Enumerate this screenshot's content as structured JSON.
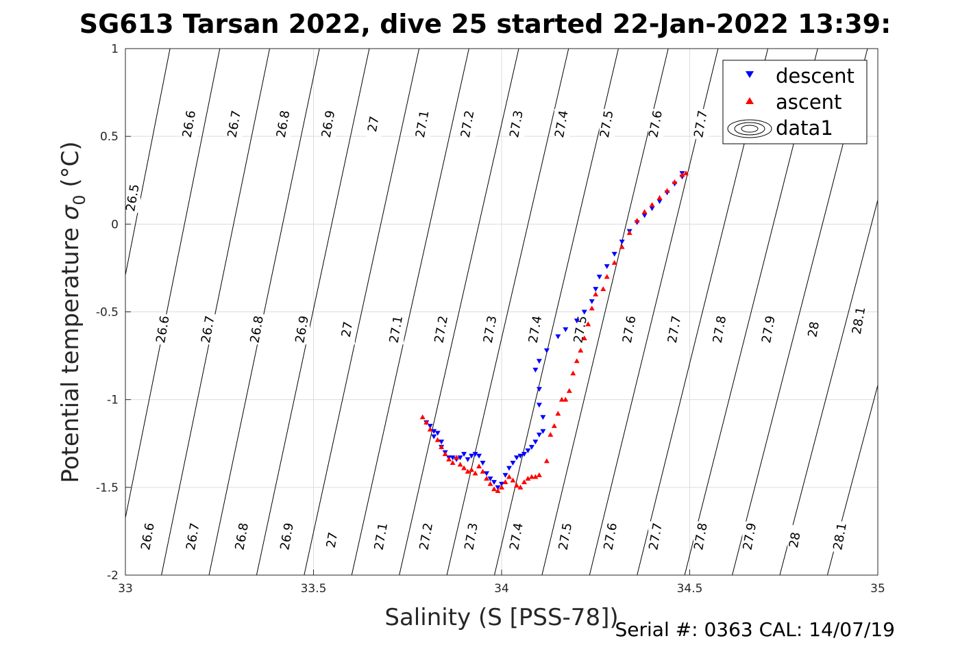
{
  "chart_data": {
    "type": "scatter",
    "title": "SG613 Tarsan 2022, dive 25 started 22-Jan-2022 13:39:",
    "xlabel": "Salinity (S [PSS-78])",
    "ylabel": "Potential temperature σ₀ (°C)",
    "ylabel_main": "Potential temperature ",
    "ylabel_sigma": "σ",
    "ylabel_sub": "0",
    "ylabel_unit": " (°C)",
    "xlim": [
      33,
      35
    ],
    "ylim": [
      -2,
      1
    ],
    "xticks": [
      33,
      33.5,
      34,
      34.5,
      35
    ],
    "xtick_labels": [
      "33",
      "33.5",
      "34",
      "34.5",
      "35"
    ],
    "yticks": [
      1,
      0.5,
      0,
      -0.5,
      -1,
      -1.5,
      -2
    ],
    "ytick_labels": [
      "1",
      "0.5",
      "0",
      "-0.5",
      "-1",
      "-1.5",
      "-2"
    ],
    "grid": true,
    "legend_position": "top-right",
    "legend": [
      "descent",
      "ascent",
      "data1"
    ],
    "colors": {
      "descent": "#0000ff",
      "ascent": "#ff0000",
      "contour": "#000000",
      "grid": "#dcdcdc"
    },
    "contours": {
      "levels": [
        26.5,
        26.6,
        26.7,
        26.8,
        26.9,
        27.0,
        27.1,
        27.2,
        27.3,
        27.4,
        27.5,
        27.6,
        27.7,
        27.8,
        27.9,
        28.0,
        28.1
      ],
      "labels": [
        {
          "text": "26.5",
          "s": 33.02,
          "t": 0.15
        },
        {
          "text": "26.6",
          "s": 33.17,
          "t": 0.57
        },
        {
          "text": "26.7",
          "s": 33.29,
          "t": 0.57
        },
        {
          "text": "26.8",
          "s": 33.42,
          "t": 0.57
        },
        {
          "text": "26.9",
          "s": 33.54,
          "t": 0.57
        },
        {
          "text": "27",
          "s": 33.66,
          "t": 0.57
        },
        {
          "text": "27.1",
          "s": 33.79,
          "t": 0.57
        },
        {
          "text": "27.2",
          "s": 33.91,
          "t": 0.57
        },
        {
          "text": "27.3",
          "s": 34.04,
          "t": 0.57
        },
        {
          "text": "27.4",
          "s": 34.16,
          "t": 0.57
        },
        {
          "text": "27.5",
          "s": 34.28,
          "t": 0.57
        },
        {
          "text": "27.6",
          "s": 34.41,
          "t": 0.57
        },
        {
          "text": "27.7",
          "s": 34.53,
          "t": 0.57
        },
        {
          "text": "26.6",
          "s": 33.1,
          "t": -0.6
        },
        {
          "text": "26.7",
          "s": 33.22,
          "t": -0.6
        },
        {
          "text": "26.8",
          "s": 33.35,
          "t": -0.6
        },
        {
          "text": "26.9",
          "s": 33.47,
          "t": -0.6
        },
        {
          "text": "27",
          "s": 33.59,
          "t": -0.6
        },
        {
          "text": "27.1",
          "s": 33.72,
          "t": -0.6
        },
        {
          "text": "27.2",
          "s": 33.84,
          "t": -0.6
        },
        {
          "text": "27.3",
          "s": 33.97,
          "t": -0.6
        },
        {
          "text": "27.4",
          "s": 34.09,
          "t": -0.6
        },
        {
          "text": "27.5",
          "s": 34.21,
          "t": -0.6
        },
        {
          "text": "27.6",
          "s": 34.34,
          "t": -0.6
        },
        {
          "text": "27.7",
          "s": 34.46,
          "t": -0.6
        },
        {
          "text": "27.8",
          "s": 34.58,
          "t": -0.6
        },
        {
          "text": "27.9",
          "s": 34.71,
          "t": -0.6
        },
        {
          "text": "28",
          "s": 34.83,
          "t": -0.6
        },
        {
          "text": "28.1",
          "s": 34.95,
          "t": -0.55
        },
        {
          "text": "26.6",
          "s": 33.06,
          "t": -1.78
        },
        {
          "text": "26.7",
          "s": 33.18,
          "t": -1.78
        },
        {
          "text": "26.8",
          "s": 33.31,
          "t": -1.78
        },
        {
          "text": "26.9",
          "s": 33.43,
          "t": -1.78
        },
        {
          "text": "27",
          "s": 33.55,
          "t": -1.8
        },
        {
          "text": "27.1",
          "s": 33.68,
          "t": -1.78
        },
        {
          "text": "27.2",
          "s": 33.8,
          "t": -1.78
        },
        {
          "text": "27.3",
          "s": 33.92,
          "t": -1.78
        },
        {
          "text": "27.4",
          "s": 34.04,
          "t": -1.78
        },
        {
          "text": "27.5",
          "s": 34.17,
          "t": -1.78
        },
        {
          "text": "27.6",
          "s": 34.29,
          "t": -1.78
        },
        {
          "text": "27.7",
          "s": 34.41,
          "t": -1.78
        },
        {
          "text": "27.8",
          "s": 34.53,
          "t": -1.78
        },
        {
          "text": "27.9",
          "s": 34.66,
          "t": -1.78
        },
        {
          "text": "28",
          "s": 34.78,
          "t": -1.8
        },
        {
          "text": "28.1",
          "s": 34.9,
          "t": -1.78
        }
      ]
    },
    "series": [
      {
        "name": "descent",
        "points": [
          [
            33.8,
            -1.13
          ],
          [
            33.81,
            -1.15
          ],
          [
            33.82,
            -1.18
          ],
          [
            33.82,
            -1.21
          ],
          [
            33.83,
            -1.19
          ],
          [
            33.84,
            -1.24
          ],
          [
            33.84,
            -1.27
          ],
          [
            33.85,
            -1.3
          ],
          [
            33.86,
            -1.33
          ],
          [
            33.87,
            -1.33
          ],
          [
            33.88,
            -1.34
          ],
          [
            33.89,
            -1.33
          ],
          [
            33.9,
            -1.31
          ],
          [
            33.91,
            -1.34
          ],
          [
            33.92,
            -1.32
          ],
          [
            33.93,
            -1.31
          ],
          [
            33.94,
            -1.32
          ],
          [
            33.95,
            -1.36
          ],
          [
            33.96,
            -1.42
          ],
          [
            33.97,
            -1.45
          ],
          [
            33.98,
            -1.47
          ],
          [
            33.99,
            -1.5
          ],
          [
            34.0,
            -1.48
          ],
          [
            34.01,
            -1.43
          ],
          [
            34.02,
            -1.39
          ],
          [
            34.03,
            -1.36
          ],
          [
            34.04,
            -1.33
          ],
          [
            34.05,
            -1.32
          ],
          [
            34.06,
            -1.31
          ],
          [
            34.07,
            -1.29
          ],
          [
            34.08,
            -1.27
          ],
          [
            34.09,
            -1.24
          ],
          [
            34.1,
            -1.2
          ],
          [
            34.11,
            -1.18
          ],
          [
            34.11,
            -1.1
          ],
          [
            34.1,
            -1.03
          ],
          [
            34.1,
            -0.94
          ],
          [
            34.09,
            -0.83
          ],
          [
            34.1,
            -0.78
          ],
          [
            34.12,
            -0.72
          ],
          [
            34.15,
            -0.64
          ],
          [
            34.17,
            -0.6
          ],
          [
            34.2,
            -0.55
          ],
          [
            34.22,
            -0.5
          ],
          [
            34.24,
            -0.44
          ],
          [
            34.25,
            -0.37
          ],
          [
            34.26,
            -0.3
          ],
          [
            34.28,
            -0.24
          ],
          [
            34.3,
            -0.17
          ],
          [
            34.32,
            -0.1
          ],
          [
            34.34,
            -0.04
          ],
          [
            34.36,
            0.01
          ],
          [
            34.38,
            0.05
          ],
          [
            34.4,
            0.09
          ],
          [
            34.42,
            0.13
          ],
          [
            34.44,
            0.18
          ],
          [
            34.46,
            0.23
          ],
          [
            34.48,
            0.27
          ],
          [
            34.48,
            0.29
          ]
        ]
      },
      {
        "name": "ascent",
        "points": [
          [
            33.79,
            -1.1
          ],
          [
            33.8,
            -1.13
          ],
          [
            33.81,
            -1.17
          ],
          [
            33.83,
            -1.23
          ],
          [
            33.84,
            -1.27
          ],
          [
            33.85,
            -1.31
          ],
          [
            33.86,
            -1.34
          ],
          [
            33.87,
            -1.36
          ],
          [
            33.88,
            -1.33
          ],
          [
            33.89,
            -1.37
          ],
          [
            33.9,
            -1.39
          ],
          [
            33.91,
            -1.41
          ],
          [
            33.92,
            -1.4
          ],
          [
            33.93,
            -1.42
          ],
          [
            33.94,
            -1.38
          ],
          [
            33.95,
            -1.41
          ],
          [
            33.96,
            -1.45
          ],
          [
            33.97,
            -1.48
          ],
          [
            33.98,
            -1.51
          ],
          [
            33.99,
            -1.52
          ],
          [
            34.0,
            -1.5
          ],
          [
            34.01,
            -1.47
          ],
          [
            34.02,
            -1.44
          ],
          [
            34.03,
            -1.46
          ],
          [
            34.04,
            -1.49
          ],
          [
            34.05,
            -1.5
          ],
          [
            34.06,
            -1.47
          ],
          [
            34.07,
            -1.45
          ],
          [
            34.08,
            -1.44
          ],
          [
            34.09,
            -1.44
          ],
          [
            34.1,
            -1.43
          ],
          [
            34.12,
            -1.35
          ],
          [
            34.13,
            -1.2
          ],
          [
            34.14,
            -1.15
          ],
          [
            34.15,
            -1.08
          ],
          [
            34.16,
            -1.0
          ],
          [
            34.17,
            -1.0
          ],
          [
            34.18,
            -0.95
          ],
          [
            34.19,
            -0.85
          ],
          [
            34.2,
            -0.78
          ],
          [
            34.21,
            -0.72
          ],
          [
            34.22,
            -0.65
          ],
          [
            34.23,
            -0.57
          ],
          [
            34.24,
            -0.48
          ],
          [
            34.25,
            -0.4
          ],
          [
            34.27,
            -0.37
          ],
          [
            34.28,
            -0.3
          ],
          [
            34.3,
            -0.22
          ],
          [
            34.32,
            -0.13
          ],
          [
            34.34,
            -0.05
          ],
          [
            34.36,
            0.02
          ],
          [
            34.38,
            0.07
          ],
          [
            34.4,
            0.11
          ],
          [
            34.42,
            0.15
          ],
          [
            34.44,
            0.19
          ],
          [
            34.46,
            0.24
          ],
          [
            34.48,
            0.28
          ],
          [
            34.49,
            0.29
          ]
        ]
      }
    ]
  },
  "footer": "Serial #: 0363  CAL: 14/07/19"
}
